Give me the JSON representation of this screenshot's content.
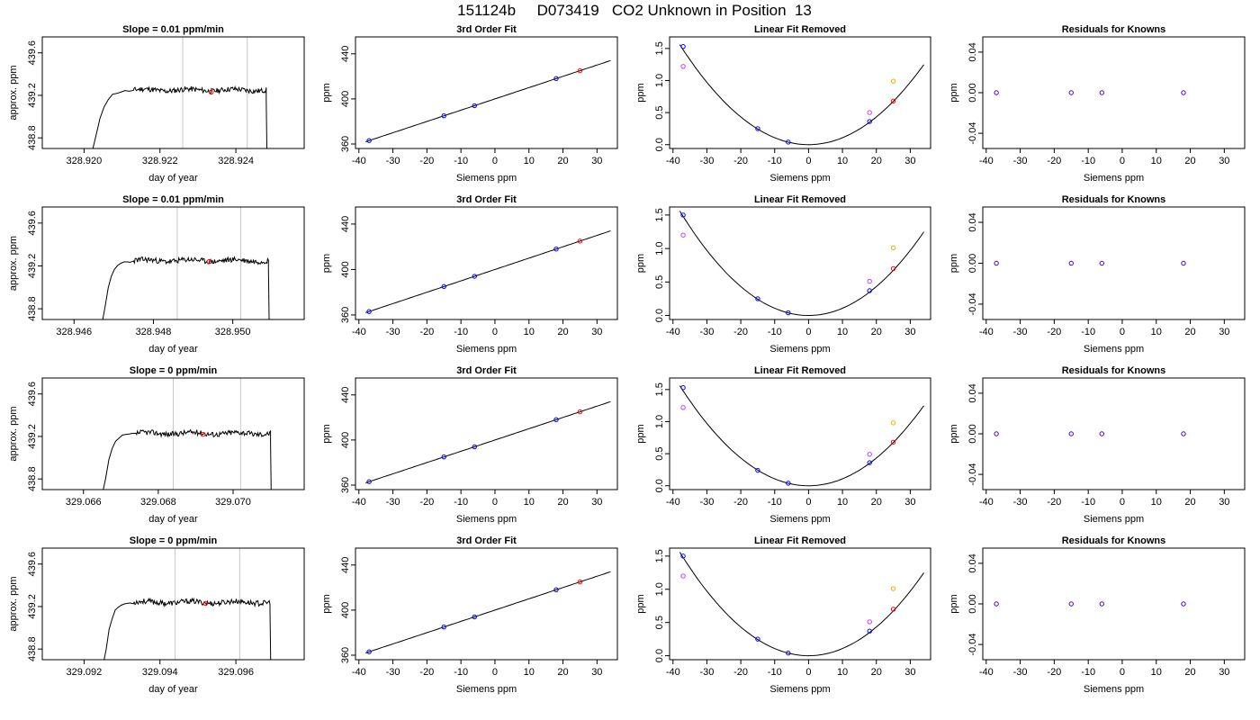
{
  "page": {
    "title": "151124b     D073419   CO2 Unknown in Position  13"
  },
  "panel_titles": {
    "fit": "3rd Order Fit",
    "linear_removed": "Linear Fit Removed",
    "residuals": "Residuals for Knowns"
  },
  "axis_labels": {
    "day_of_year": "day of year",
    "approx_ppm": "approx. ppm",
    "siemens_ppm": "Siemens ppm",
    "ppm": "ppm"
  },
  "colors": {
    "trace": "#000000",
    "grid_vline": "#c8c8c8",
    "known": "#0000ff",
    "unknown": "#ff0000",
    "magenta_point": "#c040ff",
    "orange_point": "#ffa500",
    "residual": "#4b00c8"
  },
  "chart_data": [
    {
      "type": "line",
      "row": 1,
      "panel": "timeseries",
      "title": "Slope =  0.01  ppm/min",
      "xlabel": "day of year",
      "ylabel": "approx. ppm",
      "xlim": [
        328.9189,
        328.9258
      ],
      "ylim": [
        438.7,
        439.75
      ],
      "xticks": [
        328.92,
        328.922,
        328.924
      ],
      "xtick_labels": [
        "328.920",
        "328.922",
        "328.924"
      ],
      "yticks": [
        438.8,
        439.2,
        439.6
      ],
      "ytick_labels": [
        "438.8",
        "439.2",
        "439.6"
      ],
      "vlines": [
        328.9226,
        328.9243
      ],
      "trace": {
        "start": 328.9202,
        "rise_end": 328.9213,
        "stop": 328.9248,
        "level": 439.25,
        "seed": 11
      },
      "points": [
        {
          "x": 328.92335,
          "y": 439.23,
          "color": "#ff0000"
        }
      ]
    },
    {
      "type": "scatter",
      "row": 1,
      "panel": "fit",
      "title": "3rd Order Fit",
      "xlabel": "Siemens ppm",
      "ylabel": "ppm",
      "xlim": [
        -41,
        36
      ],
      "ylim": [
        356,
        455
      ],
      "xticks": [
        -40,
        -30,
        -20,
        -10,
        0,
        10,
        20,
        30
      ],
      "yticks": [
        360,
        400,
        440
      ],
      "curve": {
        "kind": "linear",
        "slope": 1.0,
        "intercept": 400
      },
      "points": [
        {
          "x": -37,
          "y": 363,
          "color": "#0000ff"
        },
        {
          "x": -15,
          "y": 385,
          "color": "#0000ff"
        },
        {
          "x": -6,
          "y": 394,
          "color": "#0000ff"
        },
        {
          "x": 18,
          "y": 418,
          "color": "#0000ff"
        },
        {
          "x": 25,
          "y": 425,
          "color": "#ff0000"
        }
      ]
    },
    {
      "type": "scatter",
      "row": 1,
      "panel": "linear_removed",
      "title": "Linear Fit Removed",
      "xlabel": "Siemens ppm",
      "ylabel": "ppm",
      "xlim": [
        -41,
        36
      ],
      "ylim": [
        -0.06,
        1.68
      ],
      "xticks": [
        -40,
        -30,
        -20,
        -10,
        0,
        10,
        20,
        30
      ],
      "yticks": [
        0.0,
        0.5,
        1.0,
        1.5
      ],
      "ytick_labels": [
        "0.0",
        "0.5",
        "1.0",
        "1.5"
      ],
      "curve": {
        "kind": "quadratic",
        "a": 0.00108,
        "b": 0,
        "c": 0
      },
      "points": [
        {
          "x": -37,
          "y": 1.53,
          "color": "#0000ff"
        },
        {
          "x": -37,
          "y": 1.22,
          "color": "#c040ff"
        },
        {
          "x": -15,
          "y": 0.25,
          "color": "#0000ff"
        },
        {
          "x": -6,
          "y": 0.04,
          "color": "#0000ff"
        },
        {
          "x": 18,
          "y": 0.36,
          "color": "#0000ff"
        },
        {
          "x": 18,
          "y": 0.5,
          "color": "#c040ff"
        },
        {
          "x": 25,
          "y": 0.68,
          "color": "#ff0000"
        },
        {
          "x": 25,
          "y": 0.99,
          "color": "#ffa500"
        }
      ]
    },
    {
      "type": "scatter",
      "row": 1,
      "panel": "residuals",
      "title": "Residuals for Knowns",
      "xlabel": "Siemens ppm",
      "ylabel": "ppm",
      "xlim": [
        -41,
        36
      ],
      "ylim": [
        -0.055,
        0.055
      ],
      "xticks": [
        -40,
        -30,
        -20,
        -10,
        0,
        10,
        20,
        30
      ],
      "yticks": [
        -0.04,
        0.0,
        0.04
      ],
      "ytick_labels": [
        "-0.04",
        "0.00",
        "0.04"
      ],
      "points": [
        {
          "x": -37,
          "y": 0,
          "color": "#4b00c8"
        },
        {
          "x": -15,
          "y": 0,
          "color": "#4b00c8"
        },
        {
          "x": -6,
          "y": 0,
          "color": "#4b00c8"
        },
        {
          "x": 18,
          "y": 0,
          "color": "#4b00c8"
        }
      ]
    },
    {
      "type": "line",
      "row": 2,
      "panel": "timeseries",
      "title": "Slope =  0.01  ppm/min",
      "xlabel": "day of year",
      "ylabel": "approx. ppm",
      "xlim": [
        328.9452,
        328.9518
      ],
      "ylim": [
        438.7,
        439.75
      ],
      "xticks": [
        328.946,
        328.948,
        328.95
      ],
      "xtick_labels": [
        "328.946",
        "328.948",
        "328.950"
      ],
      "yticks": [
        438.8,
        439.2,
        439.6
      ],
      "ytick_labels": [
        "438.8",
        "439.2",
        "439.6"
      ],
      "vlines": [
        328.9486,
        328.9502
      ],
      "trace": {
        "start": 328.9467,
        "rise_end": 328.9475,
        "stop": 328.9509,
        "level": 439.25,
        "seed": 23
      },
      "points": [
        {
          "x": 328.9494,
          "y": 439.24,
          "color": "#ff0000"
        }
      ]
    },
    {
      "type": "scatter",
      "row": 2,
      "panel": "fit",
      "title": "3rd Order Fit",
      "xlabel": "Siemens ppm",
      "ylabel": "ppm",
      "xlim": [
        -41,
        36
      ],
      "ylim": [
        356,
        455
      ],
      "xticks": [
        -40,
        -30,
        -20,
        -10,
        0,
        10,
        20,
        30
      ],
      "yticks": [
        360,
        400,
        440
      ],
      "curve": {
        "kind": "linear",
        "slope": 1.0,
        "intercept": 400
      },
      "points": [
        {
          "x": -37,
          "y": 363,
          "color": "#0000ff"
        },
        {
          "x": -15,
          "y": 385,
          "color": "#0000ff"
        },
        {
          "x": -6,
          "y": 394,
          "color": "#0000ff"
        },
        {
          "x": 18,
          "y": 418,
          "color": "#0000ff"
        },
        {
          "x": 25,
          "y": 425,
          "color": "#ff0000"
        }
      ]
    },
    {
      "type": "scatter",
      "row": 2,
      "panel": "linear_removed",
      "title": "Linear Fit Removed",
      "xlabel": "Siemens ppm",
      "ylabel": "ppm",
      "xlim": [
        -41,
        36
      ],
      "ylim": [
        -0.06,
        1.62
      ],
      "xticks": [
        -40,
        -30,
        -20,
        -10,
        0,
        10,
        20,
        30
      ],
      "yticks": [
        0.0,
        0.5,
        1.0,
        1.5
      ],
      "ytick_labels": [
        "0.0",
        "0.5",
        "1.0",
        "1.5"
      ],
      "curve": {
        "kind": "quadratic",
        "a": 0.00108,
        "b": 0,
        "c": 0
      },
      "points": [
        {
          "x": -37,
          "y": 1.5,
          "color": "#0000ff"
        },
        {
          "x": -37,
          "y": 1.2,
          "color": "#c040ff"
        },
        {
          "x": -15,
          "y": 0.25,
          "color": "#0000ff"
        },
        {
          "x": -6,
          "y": 0.04,
          "color": "#0000ff"
        },
        {
          "x": 18,
          "y": 0.37,
          "color": "#0000ff"
        },
        {
          "x": 18,
          "y": 0.51,
          "color": "#c040ff"
        },
        {
          "x": 25,
          "y": 0.7,
          "color": "#ff0000"
        },
        {
          "x": 25,
          "y": 1.01,
          "color": "#ffa500"
        }
      ]
    },
    {
      "type": "scatter",
      "row": 2,
      "panel": "residuals",
      "title": "Residuals for Knowns",
      "xlabel": "Siemens ppm",
      "ylabel": "ppm",
      "xlim": [
        -41,
        36
      ],
      "ylim": [
        -0.055,
        0.055
      ],
      "xticks": [
        -40,
        -30,
        -20,
        -10,
        0,
        10,
        20,
        30
      ],
      "yticks": [
        -0.04,
        0.0,
        0.04
      ],
      "ytick_labels": [
        "-0.04",
        "0.00",
        "0.04"
      ],
      "points": [
        {
          "x": -37,
          "y": 0,
          "color": "#4b00c8"
        },
        {
          "x": -15,
          "y": 0,
          "color": "#4b00c8"
        },
        {
          "x": -6,
          "y": 0,
          "color": "#4b00c8"
        },
        {
          "x": 18,
          "y": 0,
          "color": "#4b00c8"
        }
      ]
    },
    {
      "type": "line",
      "row": 3,
      "panel": "timeseries",
      "title": "Slope =  0  ppm/min",
      "xlabel": "day of year",
      "ylabel": "approx. ppm",
      "xlim": [
        329.0649,
        329.0719
      ],
      "ylim": [
        438.7,
        439.75
      ],
      "xticks": [
        329.066,
        329.068,
        329.07
      ],
      "xtick_labels": [
        "329.066",
        "329.068",
        "329.070"
      ],
      "vlines": [
        329.0684,
        329.0702
      ],
      "yticks": [
        438.8,
        439.2,
        439.6
      ],
      "ytick_labels": [
        "438.8",
        "439.2",
        "439.6"
      ],
      "trace": {
        "start": 329.0665,
        "rise_end": 329.0674,
        "stop": 329.071,
        "level": 439.23,
        "seed": 37
      },
      "points": [
        {
          "x": 329.0692,
          "y": 439.22,
          "color": "#ff0000"
        }
      ]
    },
    {
      "type": "scatter",
      "row": 3,
      "panel": "fit",
      "title": "3rd Order Fit",
      "xlabel": "Siemens ppm",
      "ylabel": "ppm",
      "xlim": [
        -41,
        36
      ],
      "ylim": [
        356,
        455
      ],
      "xticks": [
        -40,
        -30,
        -20,
        -10,
        0,
        10,
        20,
        30
      ],
      "yticks": [
        360,
        400,
        440
      ],
      "curve": {
        "kind": "linear",
        "slope": 1.0,
        "intercept": 400
      },
      "points": [
        {
          "x": -37,
          "y": 363,
          "color": "#0000ff"
        },
        {
          "x": -15,
          "y": 385,
          "color": "#0000ff"
        },
        {
          "x": -6,
          "y": 394,
          "color": "#0000ff"
        },
        {
          "x": 18,
          "y": 418,
          "color": "#0000ff"
        },
        {
          "x": 25,
          "y": 425,
          "color": "#ff0000"
        }
      ]
    },
    {
      "type": "scatter",
      "row": 3,
      "panel": "linear_removed",
      "title": "Linear Fit Removed",
      "xlabel": "Siemens ppm",
      "ylabel": "ppm",
      "xlim": [
        -41,
        36
      ],
      "ylim": [
        -0.06,
        1.68
      ],
      "xticks": [
        -40,
        -30,
        -20,
        -10,
        0,
        10,
        20,
        30
      ],
      "yticks": [
        0.0,
        0.5,
        1.0,
        1.5
      ],
      "ytick_labels": [
        "0.0",
        "0.5",
        "1.0",
        "1.5"
      ],
      "curve": {
        "kind": "quadratic",
        "a": 0.00108,
        "b": 0,
        "c": 0
      },
      "points": [
        {
          "x": -37,
          "y": 1.53,
          "color": "#0000ff"
        },
        {
          "x": -37,
          "y": 1.22,
          "color": "#c040ff"
        },
        {
          "x": -15,
          "y": 0.24,
          "color": "#0000ff"
        },
        {
          "x": -6,
          "y": 0.04,
          "color": "#0000ff"
        },
        {
          "x": 18,
          "y": 0.36,
          "color": "#0000ff"
        },
        {
          "x": 18,
          "y": 0.49,
          "color": "#c040ff"
        },
        {
          "x": 25,
          "y": 0.68,
          "color": "#ff0000"
        },
        {
          "x": 25,
          "y": 0.98,
          "color": "#ffa500"
        }
      ]
    },
    {
      "type": "scatter",
      "row": 3,
      "panel": "residuals",
      "title": "Residuals for Knowns",
      "xlabel": "Siemens ppm",
      "ylabel": "ppm",
      "xlim": [
        -41,
        36
      ],
      "ylim": [
        -0.055,
        0.055
      ],
      "xticks": [
        -40,
        -30,
        -20,
        -10,
        0,
        10,
        20,
        30
      ],
      "yticks": [
        -0.04,
        0.0,
        0.04
      ],
      "ytick_labels": [
        "-0.04",
        "0.00",
        "0.04"
      ],
      "points": [
        {
          "x": -37,
          "y": 0,
          "color": "#4b00c8"
        },
        {
          "x": -15,
          "y": 0,
          "color": "#4b00c8"
        },
        {
          "x": -6,
          "y": 0,
          "color": "#4b00c8"
        },
        {
          "x": 18,
          "y": 0,
          "color": "#4b00c8"
        }
      ]
    },
    {
      "type": "line",
      "row": 4,
      "panel": "timeseries",
      "title": "Slope =  0  ppm/min",
      "xlabel": "day of year",
      "ylabel": "approx. ppm",
      "xlim": [
        329.0909,
        329.0978
      ],
      "ylim": [
        438.7,
        439.75
      ],
      "xticks": [
        329.092,
        329.094,
        329.096
      ],
      "xtick_labels": [
        "329.092",
        "329.094",
        "329.096"
      ],
      "yticks": [
        438.8,
        439.2,
        439.6
      ],
      "ytick_labels": [
        "438.8",
        "439.2",
        "439.6"
      ],
      "vlines": [
        329.0944,
        329.0961
      ],
      "trace": {
        "start": 329.0925,
        "rise_end": 329.0933,
        "stop": 329.0969,
        "level": 439.24,
        "seed": 53
      },
      "points": [
        {
          "x": 329.0952,
          "y": 439.23,
          "color": "#ff0000"
        }
      ]
    },
    {
      "type": "scatter",
      "row": 4,
      "panel": "fit",
      "title": "3rd Order Fit",
      "xlabel": "Siemens ppm",
      "ylabel": "ppm",
      "xlim": [
        -41,
        36
      ],
      "ylim": [
        356,
        455
      ],
      "xticks": [
        -40,
        -30,
        -20,
        -10,
        0,
        10,
        20,
        30
      ],
      "yticks": [
        360,
        400,
        440
      ],
      "curve": {
        "kind": "linear",
        "slope": 1.0,
        "intercept": 400
      },
      "points": [
        {
          "x": -37,
          "y": 363,
          "color": "#0000ff"
        },
        {
          "x": -15,
          "y": 385,
          "color": "#0000ff"
        },
        {
          "x": -6,
          "y": 394,
          "color": "#0000ff"
        },
        {
          "x": 18,
          "y": 418,
          "color": "#0000ff"
        },
        {
          "x": 25,
          "y": 425,
          "color": "#ff0000"
        }
      ]
    },
    {
      "type": "scatter",
      "row": 4,
      "panel": "linear_removed",
      "title": "Linear Fit Removed",
      "xlabel": "Siemens ppm",
      "ylabel": "ppm",
      "xlim": [
        -41,
        36
      ],
      "ylim": [
        -0.06,
        1.62
      ],
      "xticks": [
        -40,
        -30,
        -20,
        -10,
        0,
        10,
        20,
        30
      ],
      "yticks": [
        0.0,
        0.5,
        1.0,
        1.5
      ],
      "ytick_labels": [
        "0.0",
        "0.5",
        "1.0",
        "1.5"
      ],
      "curve": {
        "kind": "quadratic",
        "a": 0.00108,
        "b": 0,
        "c": 0
      },
      "points": [
        {
          "x": -37,
          "y": 1.5,
          "color": "#0000ff"
        },
        {
          "x": -37,
          "y": 1.2,
          "color": "#c040ff"
        },
        {
          "x": -15,
          "y": 0.25,
          "color": "#0000ff"
        },
        {
          "x": -6,
          "y": 0.04,
          "color": "#0000ff"
        },
        {
          "x": 18,
          "y": 0.37,
          "color": "#0000ff"
        },
        {
          "x": 18,
          "y": 0.51,
          "color": "#c040ff"
        },
        {
          "x": 25,
          "y": 0.7,
          "color": "#ff0000"
        },
        {
          "x": 25,
          "y": 1.01,
          "color": "#ffa500"
        }
      ]
    },
    {
      "type": "scatter",
      "row": 4,
      "panel": "residuals",
      "title": "Residuals for Knowns",
      "xlabel": "Siemens ppm",
      "ylabel": "ppm",
      "xlim": [
        -41,
        36
      ],
      "ylim": [
        -0.055,
        0.055
      ],
      "xticks": [
        -40,
        -30,
        -20,
        -10,
        0,
        10,
        20,
        30
      ],
      "yticks": [
        -0.04,
        0.0,
        0.04
      ],
      "ytick_labels": [
        "-0.04",
        "0.00",
        "0.04"
      ],
      "points": [
        {
          "x": -37,
          "y": 0,
          "color": "#4b00c8"
        },
        {
          "x": -15,
          "y": 0,
          "color": "#4b00c8"
        },
        {
          "x": -6,
          "y": 0,
          "color": "#4b00c8"
        },
        {
          "x": 18,
          "y": 0,
          "color": "#4b00c8"
        }
      ]
    }
  ]
}
